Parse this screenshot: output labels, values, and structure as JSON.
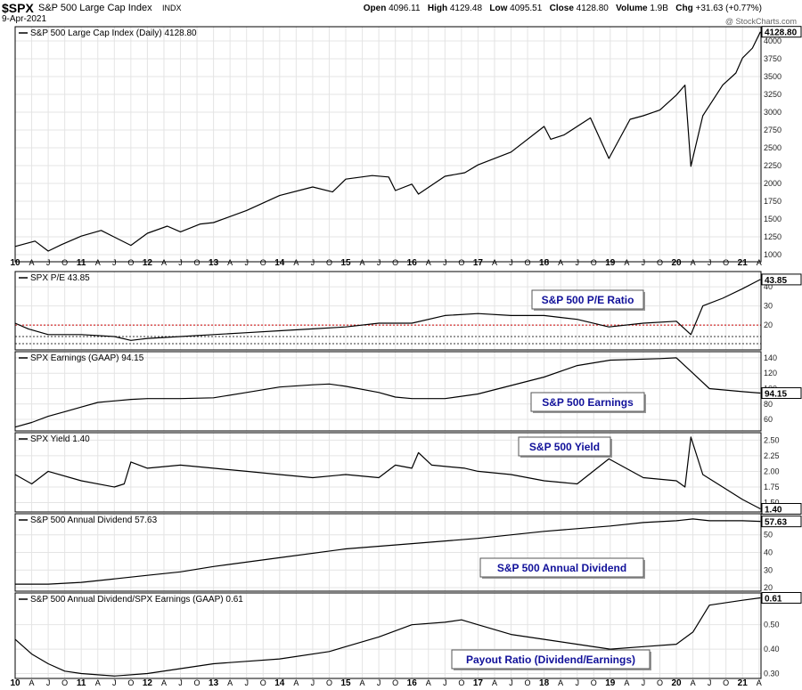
{
  "header": {
    "symbol": "$SPX",
    "name": "S&P 500 Large Cap Index",
    "exchange": "INDX",
    "date": "9-Apr-2021",
    "open_label": "Open",
    "open": "4096.11",
    "high_label": "High",
    "high": "4129.48",
    "low_label": "Low",
    "low": "4095.51",
    "close_label": "Close",
    "close": "4128.80",
    "volume_label": "Volume",
    "volume": "1.9B",
    "chg_label": "Chg",
    "chg": "+31.63 (+0.77%)",
    "watermark": "@ StockCharts.com"
  },
  "x_axis": {
    "ticks": [
      {
        "t": 2010.0,
        "l": "10",
        "major": true
      },
      {
        "t": 2010.25,
        "l": "A"
      },
      {
        "t": 2010.5,
        "l": "J"
      },
      {
        "t": 2010.75,
        "l": "O"
      },
      {
        "t": 2011.0,
        "l": "11",
        "major": true
      },
      {
        "t": 2011.25,
        "l": "A"
      },
      {
        "t": 2011.5,
        "l": "J"
      },
      {
        "t": 2011.75,
        "l": "O"
      },
      {
        "t": 2012.0,
        "l": "12",
        "major": true
      },
      {
        "t": 2012.25,
        "l": "A"
      },
      {
        "t": 2012.5,
        "l": "J"
      },
      {
        "t": 2012.75,
        "l": "O"
      },
      {
        "t": 2013.0,
        "l": "13",
        "major": true
      },
      {
        "t": 2013.25,
        "l": "A"
      },
      {
        "t": 2013.5,
        "l": "J"
      },
      {
        "t": 2013.75,
        "l": "O"
      },
      {
        "t": 2014.0,
        "l": "14",
        "major": true
      },
      {
        "t": 2014.25,
        "l": "A"
      },
      {
        "t": 2014.5,
        "l": "J"
      },
      {
        "t": 2014.75,
        "l": "O"
      },
      {
        "t": 2015.0,
        "l": "15",
        "major": true
      },
      {
        "t": 2015.25,
        "l": "A"
      },
      {
        "t": 2015.5,
        "l": "J"
      },
      {
        "t": 2015.75,
        "l": "O"
      },
      {
        "t": 2016.0,
        "l": "16",
        "major": true
      },
      {
        "t": 2016.25,
        "l": "A"
      },
      {
        "t": 2016.5,
        "l": "J"
      },
      {
        "t": 2016.75,
        "l": "O"
      },
      {
        "t": 2017.0,
        "l": "17",
        "major": true
      },
      {
        "t": 2017.25,
        "l": "A"
      },
      {
        "t": 2017.5,
        "l": "J"
      },
      {
        "t": 2017.75,
        "l": "O"
      },
      {
        "t": 2018.0,
        "l": "18",
        "major": true
      },
      {
        "t": 2018.25,
        "l": "A"
      },
      {
        "t": 2018.5,
        "l": "J"
      },
      {
        "t": 2018.75,
        "l": "O"
      },
      {
        "t": 2019.0,
        "l": "19",
        "major": true
      },
      {
        "t": 2019.25,
        "l": "A"
      },
      {
        "t": 2019.5,
        "l": "J"
      },
      {
        "t": 2019.75,
        "l": "O"
      },
      {
        "t": 2020.0,
        "l": "20",
        "major": true
      },
      {
        "t": 2020.25,
        "l": "A"
      },
      {
        "t": 2020.5,
        "l": "J"
      },
      {
        "t": 2020.75,
        "l": "O"
      },
      {
        "t": 2021.0,
        "l": "21",
        "major": true
      },
      {
        "t": 2021.25,
        "l": "A"
      }
    ]
  },
  "chart_data": [
    {
      "type": "line",
      "legend": "S&P 500 Large Cap Index (Daily) 4128.80",
      "last_value": "4128.80",
      "ylim": [
        900,
        4200
      ],
      "yticks": [
        1000,
        1250,
        1500,
        1750,
        2000,
        2250,
        2500,
        2750,
        3000,
        3250,
        3500,
        3750,
        4000
      ],
      "series": [
        {
          "name": "S&P 500 Large Cap Index (Daily)",
          "x": [
            2010.0,
            2010.3,
            2010.5,
            2010.7,
            2011.0,
            2011.3,
            2011.6,
            2011.75,
            2012.0,
            2012.3,
            2012.5,
            2012.8,
            2013.0,
            2013.5,
            2014.0,
            2014.5,
            2014.8,
            2015.0,
            2015.4,
            2015.65,
            2015.75,
            2016.0,
            2016.1,
            2016.5,
            2016.8,
            2017.0,
            2017.5,
            2018.0,
            2018.1,
            2018.3,
            2018.7,
            2018.98,
            2019.3,
            2019.5,
            2019.75,
            2020.0,
            2020.13,
            2020.22,
            2020.4,
            2020.7,
            2020.9,
            2021.0,
            2021.15,
            2021.27
          ],
          "y": [
            1115,
            1190,
            1050,
            1140,
            1260,
            1340,
            1200,
            1130,
            1300,
            1400,
            1320,
            1430,
            1450,
            1620,
            1830,
            1950,
            1880,
            2060,
            2110,
            2090,
            1900,
            1990,
            1850,
            2100,
            2150,
            2260,
            2440,
            2800,
            2620,
            2680,
            2920,
            2350,
            2900,
            2950,
            3030,
            3240,
            3380,
            2240,
            2950,
            3380,
            3550,
            3760,
            3900,
            4128
          ]
        }
      ]
    },
    {
      "type": "line",
      "legend": "SPX P/E 43.85",
      "last_value": "43.85",
      "annotation": "S&P 500 P/E Ratio",
      "ylim": [
        7,
        48
      ],
      "yticks": [
        20,
        30,
        40
      ],
      "reference_line": 20,
      "series": [
        {
          "name": "SPX P/E",
          "x": [
            2010.0,
            2010.2,
            2010.5,
            2011.0,
            2011.5,
            2011.75,
            2012.0,
            2012.5,
            2013.0,
            2013.5,
            2014.0,
            2014.5,
            2015.0,
            2015.5,
            2016.0,
            2016.5,
            2017.0,
            2017.5,
            2018.0,
            2018.5,
            2018.98,
            2019.5,
            2020.0,
            2020.22,
            2020.4,
            2020.7,
            2021.0,
            2021.27
          ],
          "y": [
            21,
            18,
            15,
            15,
            14,
            12,
            13,
            14,
            15,
            16,
            17,
            18,
            19,
            21,
            21,
            25,
            26,
            25,
            25,
            23,
            19,
            21,
            22,
            15,
            30,
            34,
            39,
            43.85
          ]
        }
      ]
    },
    {
      "type": "line",
      "legend": "SPX Earnings (GAAP) 94.15",
      "last_value": "94.15",
      "annotation": "S&P 500 Earnings",
      "ylim": [
        45,
        148
      ],
      "yticks": [
        60,
        80,
        100,
        120,
        140
      ],
      "series": [
        {
          "name": "SPX Earnings (GAAP)",
          "x": [
            2010.0,
            2010.25,
            2010.5,
            2010.75,
            2011.0,
            2011.25,
            2011.5,
            2011.75,
            2012.0,
            2012.5,
            2013.0,
            2013.5,
            2014.0,
            2014.5,
            2014.75,
            2015.0,
            2015.5,
            2015.75,
            2016.0,
            2016.5,
            2017.0,
            2017.5,
            2018.0,
            2018.5,
            2019.0,
            2019.75,
            2020.0,
            2020.25,
            2020.5,
            2021.0,
            2021.27
          ],
          "y": [
            50,
            56,
            64,
            70,
            76,
            82,
            84,
            86,
            87,
            87,
            88,
            95,
            102,
            105,
            106,
            103,
            95,
            89,
            87,
            87,
            93,
            104,
            115,
            130,
            137,
            139,
            140,
            120,
            100,
            96,
            94.15
          ]
        }
      ]
    },
    {
      "type": "line",
      "legend": "SPX Yield 1.40",
      "last_value": "1.40",
      "annotation": "S&P 500 Yield",
      "ylim": [
        1.35,
        2.62
      ],
      "yticks": [
        1.5,
        1.75,
        2.0,
        2.25,
        2.5
      ],
      "series": [
        {
          "name": "SPX Yield",
          "x": [
            2010.0,
            2010.25,
            2010.5,
            2011.0,
            2011.5,
            2011.65,
            2011.75,
            2012.0,
            2012.5,
            2013.0,
            2013.5,
            2014.0,
            2014.5,
            2015.0,
            2015.5,
            2015.75,
            2016.0,
            2016.1,
            2016.3,
            2016.8,
            2017.0,
            2017.5,
            2018.0,
            2018.5,
            2018.98,
            2019.5,
            2020.0,
            2020.13,
            2020.22,
            2020.4,
            2020.7,
            2021.0,
            2021.27
          ],
          "y": [
            1.95,
            1.8,
            2.0,
            1.85,
            1.75,
            1.8,
            2.15,
            2.05,
            2.1,
            2.05,
            2.0,
            1.95,
            1.9,
            1.95,
            1.9,
            2.1,
            2.05,
            2.3,
            2.1,
            2.05,
            2.0,
            1.95,
            1.85,
            1.8,
            2.2,
            1.9,
            1.85,
            1.75,
            2.55,
            1.95,
            1.75,
            1.55,
            1.4
          ]
        }
      ]
    },
    {
      "type": "line",
      "legend": "S&P 500 Annual Dividend 57.63",
      "last_value": "57.63",
      "annotation": "S&P 500 Annual Dividend",
      "ylim": [
        18,
        62
      ],
      "yticks": [
        20,
        30,
        40,
        50
      ],
      "series": [
        {
          "name": "S&P 500 Annual Dividend",
          "x": [
            2010.0,
            2010.5,
            2011.0,
            2011.5,
            2012.0,
            2012.5,
            2013.0,
            2014.0,
            2015.0,
            2016.0,
            2017.0,
            2018.0,
            2019.0,
            2019.5,
            2020.0,
            2020.25,
            2020.5,
            2021.0,
            2021.27
          ],
          "y": [
            22,
            22,
            23,
            25,
            27,
            29,
            32,
            37,
            42,
            45,
            48,
            52,
            55,
            57,
            58,
            59,
            58,
            58,
            57.63
          ]
        }
      ]
    },
    {
      "type": "line",
      "legend": "S&P 500 Annual Dividend/SPX Earnings (GAAP) 0.61",
      "last_value": "0.61",
      "annotation": "Payout Ratio (Dividend/Earnings)",
      "ylim": [
        0.28,
        0.63
      ],
      "yticks": [
        0.3,
        0.4,
        0.5
      ],
      "series": [
        {
          "name": "S&P 500 Annual Dividend/SPX Earnings (GAAP)",
          "x": [
            2010.0,
            2010.25,
            2010.5,
            2010.75,
            2011.0,
            2011.5,
            2012.0,
            2012.5,
            2013.0,
            2013.5,
            2014.0,
            2014.75,
            2015.0,
            2015.5,
            2016.0,
            2016.5,
            2016.75,
            2017.0,
            2017.5,
            2018.0,
            2018.5,
            2019.0,
            2019.5,
            2020.0,
            2020.25,
            2020.5,
            2021.0,
            2021.27
          ],
          "y": [
            0.44,
            0.38,
            0.34,
            0.31,
            0.3,
            0.29,
            0.3,
            0.32,
            0.34,
            0.35,
            0.36,
            0.39,
            0.41,
            0.45,
            0.5,
            0.51,
            0.52,
            0.5,
            0.46,
            0.44,
            0.42,
            0.4,
            0.41,
            0.42,
            0.47,
            0.58,
            0.6,
            0.61
          ]
        }
      ]
    }
  ]
}
